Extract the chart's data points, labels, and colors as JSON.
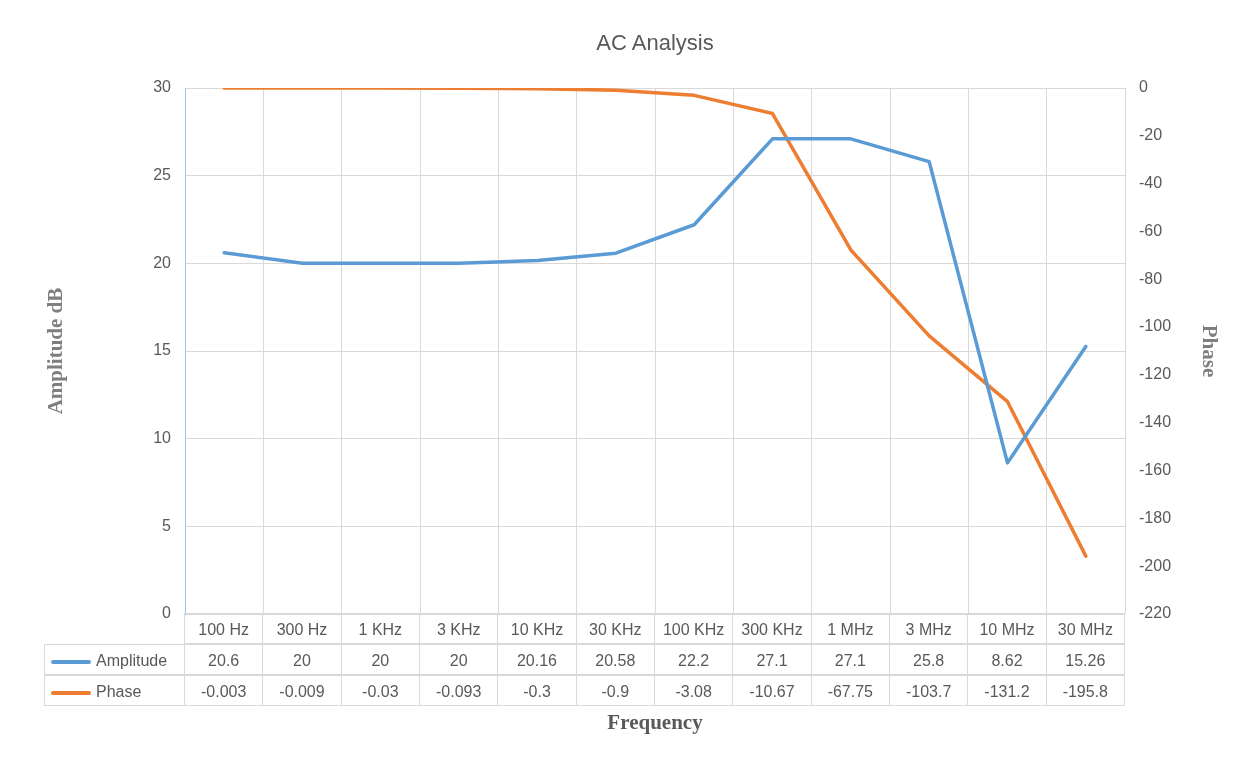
{
  "chart_data": {
    "type": "line",
    "title": "AC Analysis",
    "xlabel": "Frequency",
    "ylabel": "Amplitude dB",
    "y2label": "Phase",
    "categories": [
      "100 Hz",
      "300 Hz",
      "1 KHz",
      "3 KHz",
      "10 KHz",
      "30 KHz",
      "100 KHz",
      "300 KHz",
      "1 MHz",
      "3 MHz",
      "10 MHz",
      "30 MHz"
    ],
    "series": [
      {
        "name": "Amplitude",
        "color": "#5b9bd5",
        "values": [
          20.6,
          20,
          20,
          20,
          20.16,
          20.58,
          22.2,
          27.1,
          27.1,
          25.8,
          8.62,
          15.26
        ]
      },
      {
        "name": "Phase",
        "color": "#ed7d31",
        "axis": "y2",
        "values": [
          -0.003,
          -0.009,
          -0.03,
          -0.093,
          -0.3,
          -0.9,
          -3.08,
          -10.67,
          -67.75,
          -103.7,
          -131.2,
          -195.8
        ]
      }
    ],
    "ylim": [
      0,
      30
    ],
    "yticks": [
      0,
      5,
      10,
      15,
      20,
      25,
      30
    ],
    "y2lim": [
      -220,
      0
    ],
    "y2ticks": [
      -220,
      -200,
      -180,
      -160,
      -140,
      -120,
      -100,
      -80,
      -60,
      -40,
      -20,
      0
    ],
    "grid": true,
    "legend": "bottom",
    "data_labels": true,
    "marker": "none",
    "line_style": "solid"
  }
}
